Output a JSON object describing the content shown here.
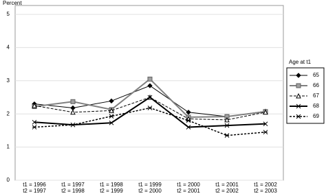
{
  "chart_data": {
    "type": "line",
    "y_label": "Percent",
    "legend_title": "Age at t1",
    "categories": [
      [
        "t1 = 1996",
        "t2 = 1997"
      ],
      [
        "t1 = 1997",
        "t2 = 1998"
      ],
      [
        "t1 = 1998",
        "t2 = 1999"
      ],
      [
        "t1 = 1999",
        "t2 = 2000"
      ],
      [
        "t1 = 2000",
        "t2 = 2001"
      ],
      [
        "t1 = 2001",
        "t2 = 2002"
      ],
      [
        "t1 = 2002",
        "t2 = 2003"
      ]
    ],
    "series": [
      {
        "name": "65",
        "color": "#000000",
        "marker": "diamond",
        "dash": "none",
        "width": 1,
        "values": [
          2.3,
          2.18,
          2.39,
          2.85,
          2.05,
          1.92,
          2.08
        ]
      },
      {
        "name": "66",
        "color": "#808080",
        "marker": "square",
        "dash": "none",
        "width": 2,
        "values": [
          2.22,
          2.37,
          2.13,
          3.05,
          1.9,
          1.92,
          2.07
        ]
      },
      {
        "name": "67",
        "color": "#000000",
        "marker": "triangle",
        "dash": "4,2",
        "width": 1,
        "values": [
          2.25,
          2.05,
          2.1,
          2.5,
          1.85,
          1.82,
          2.05
        ]
      },
      {
        "name": "68",
        "color": "#000000",
        "marker": "x",
        "dash": "none",
        "width": 2,
        "values": [
          1.75,
          1.67,
          1.73,
          2.5,
          1.6,
          1.65,
          1.7
        ]
      },
      {
        "name": "69",
        "color": "#000000",
        "marker": "asterisk",
        "dash": "3,2",
        "width": 1.5,
        "values": [
          1.6,
          1.67,
          1.93,
          2.18,
          1.8,
          1.35,
          1.45
        ]
      }
    ],
    "ylim": [
      0,
      5
    ],
    "yticks": [
      0,
      1,
      2,
      3,
      4,
      5
    ],
    "grid": true
  }
}
